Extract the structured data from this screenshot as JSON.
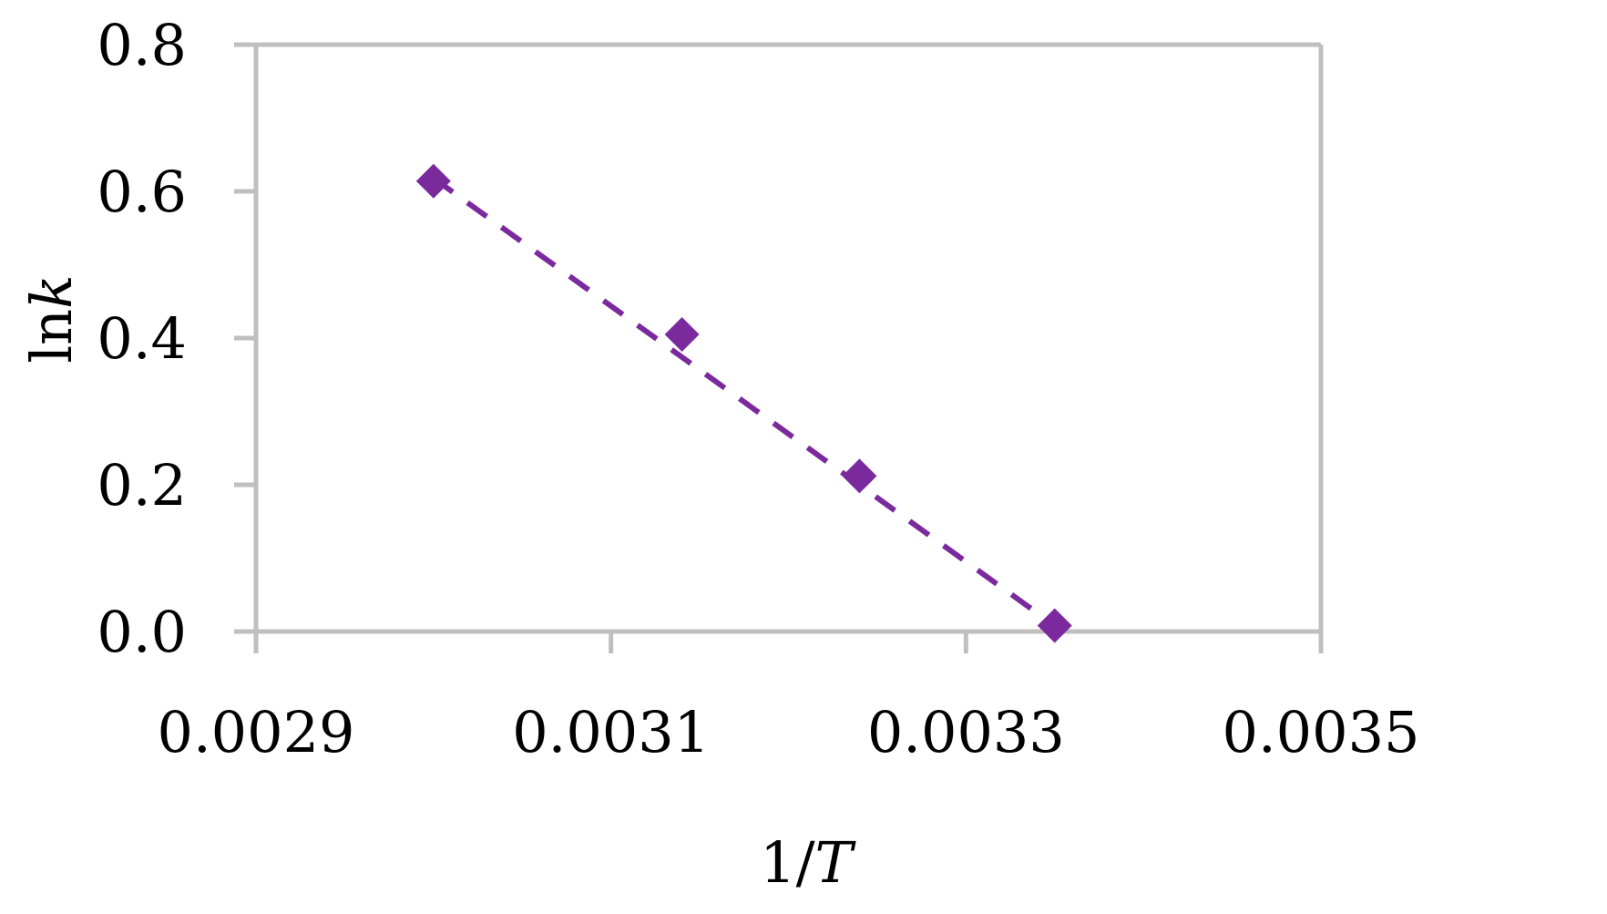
{
  "chart_data": {
    "type": "scatter",
    "x_axis": {
      "label_parts": [
        "1/",
        "T"
      ],
      "range": [
        0.0029,
        0.0035
      ],
      "ticks": [
        0.0029,
        0.0031,
        0.0033,
        0.0035
      ],
      "tick_labels": [
        "0.0029",
        "0.0031",
        "0.0033",
        "0.0035"
      ]
    },
    "y_axis": {
      "label_parts": [
        "ln",
        "k"
      ],
      "range": [
        0.0,
        0.8
      ],
      "ticks": [
        0.0,
        0.2,
        0.4,
        0.6,
        0.8
      ],
      "tick_labels": [
        "0.0",
        "0.2",
        "0.4",
        "0.6",
        "0.8"
      ]
    },
    "grid": false,
    "legend": "none",
    "series": [
      {
        "points": [
          {
            "x": 0.003,
            "y": 0.614
          },
          {
            "x": 0.00314,
            "y": 0.405
          },
          {
            "x": 0.00324,
            "y": 0.212
          },
          {
            "x": 0.00335,
            "y": 0.008
          }
        ],
        "marker": "diamond",
        "color": "#7B2A9E",
        "trendline": {
          "style": "dashed",
          "from": {
            "x": 0.003,
            "y": 0.618
          },
          "to": {
            "x": 0.00335,
            "y": 0.008
          }
        }
      }
    ],
    "colors": {
      "frame": "#BFBFBF",
      "series": "#7B2A9E",
      "text": "#000000"
    }
  }
}
